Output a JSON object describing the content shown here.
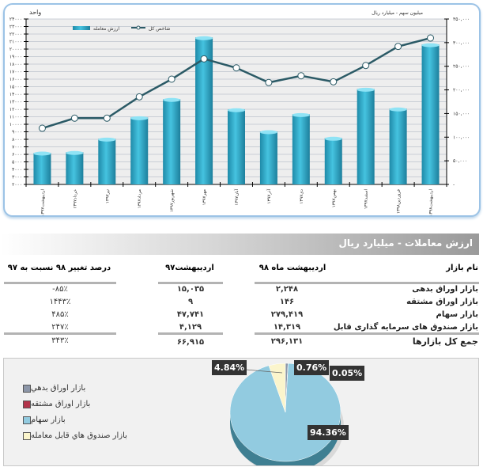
{
  "chart_data": {
    "type": "bar+line",
    "left_axis_title": "واحد",
    "right_axis_title": "میلیون سهم - میلیارد ریال",
    "left_ticks": [
      "۲۴۰۰۰",
      "۲۳۰۰۰",
      "۲۲۰۰۰",
      "۲۱۰۰۰",
      "۲۰۰۰۰",
      "۱۹۰۰۰",
      "۱۸۰۰۰",
      "۱۷۰۰۰",
      "۱۶۰۰۰",
      "۱۵۰۰۰",
      "۱۴۰۰۰",
      "۱۳۰۰۰",
      "۱۲۰۰۰",
      "۱۱۰۰۰",
      "۱۰۰۰۰",
      "۹۰۰۰",
      "۸۰۰۰",
      "۷۰۰۰",
      "۶۰۰۰",
      "۵۰۰۰",
      "۴۰۰۰",
      "۳۰۰۰",
      "۲۰۰۰"
    ],
    "left_range": [
      2000,
      24000
    ],
    "right_ticks": [
      "۳۵۰,۰۰۰",
      "۳۰۰,۰۰۰",
      "۲۵۰,۰۰۰",
      "۲۰۰,۰۰۰",
      "۱۵۰,۰۰۰",
      "۱۰۰,۰۰۰",
      "۵۰,۰۰۰",
      "-"
    ],
    "right_range": [
      0,
      350000
    ],
    "categories": [
      "۱۳۹۷اردیبهشت",
      "۱۳۹۷خرداد",
      "۱۳۹۷تیر",
      "۱۳۹۷مرداد",
      "۱۳۹۷شهریور",
      "۱۳۹۷مهر",
      "۱۳۹۷آبان",
      "۱۳۹۷آذر",
      "۱۳۹۷دی",
      "۱۳۹۷بهمن",
      "۱۳۹۷اسفند",
      "۱۳۹۸فروردین",
      "۱۳۹۸اردیبهشت"
    ],
    "series": [
      {
        "name": "ارزش معامله",
        "type": "bar",
        "axis": "right",
        "color": "#2fa8c8",
        "values": [
          66915,
          68200,
          96600,
          141800,
          180400,
          311000,
          158600,
          112200,
          148500,
          98300,
          202100,
          160300,
          296131
        ]
      },
      {
        "name": "شاخص کل",
        "type": "line",
        "axis": "left",
        "color": "#2b5a66",
        "values": [
          9470,
          10810,
          10810,
          13650,
          16000,
          18700,
          17500,
          15550,
          16450,
          15650,
          17820,
          20350,
          21470
        ]
      }
    ]
  },
  "section_title": "ارزش معاملات - میلیارد ریال",
  "table": {
    "headers": [
      "نام بازار",
      "اردیبهشت ماه ۹۸",
      "اردیبهشت۹۷",
      "درصد تغییر ۹۸ نسبت به ۹۷"
    ],
    "rows": [
      {
        "name": "بازار اوراق بدهی",
        "v98": "۲,۲۴۸",
        "v97": "۱۵,۰۳۵",
        "pct": "-۸۵٪"
      },
      {
        "name": "بازار اوراق مشتقه",
        "v98": "۱۴۶",
        "v97": "۹",
        "pct": "۱۴۴۳٪"
      },
      {
        "name": "بازار سهام",
        "v98": "۲۷۹,۴۱۹",
        "v97": "۴۷,۷۴۱",
        "pct": "۴۸۵٪"
      },
      {
        "name": "بازار صندوق های سرمایه گذاری قابل",
        "v98": "۱۴,۳۱۹",
        "v97": "۴,۱۲۹",
        "pct": "۲۴۷٪"
      }
    ],
    "total": {
      "name": "جمع کل بازارها",
      "v98": "۲۹۶,۱۳۱",
      "v97": "۶۶,۹۱۵",
      "pct": "۳۴۳٪"
    }
  },
  "pie": {
    "legend": [
      {
        "label": "بازار اوراق بدهي",
        "color": "#8c96a8"
      },
      {
        "label": "بازار اوراق مشتقه",
        "color": "#b2344a"
      },
      {
        "label": "بازار سهام",
        "color": "#92cbe0"
      },
      {
        "label": "بازار صندوق هاي قابل معامله",
        "color": "#fbf5cc"
      }
    ],
    "labels": [
      "0.76%",
      "0.05%",
      "94.36%",
      "4.84%"
    ],
    "values": [
      0.76,
      0.05,
      94.36,
      4.84
    ]
  }
}
